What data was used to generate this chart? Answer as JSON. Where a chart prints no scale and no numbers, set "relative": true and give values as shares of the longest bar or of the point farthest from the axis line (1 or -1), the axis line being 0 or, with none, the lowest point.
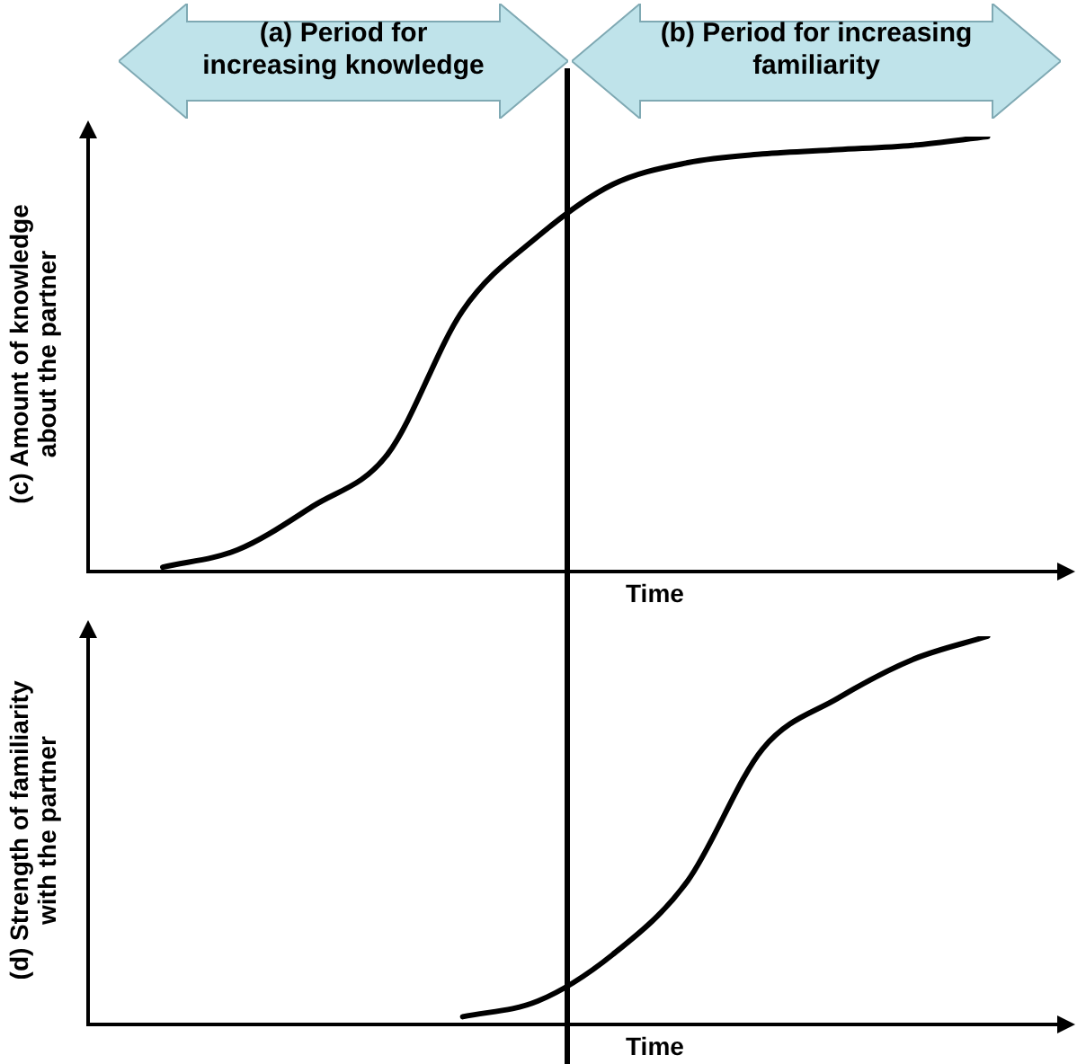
{
  "chart_data": [
    {
      "type": "line",
      "relative": true,
      "ylabel": "(c) Amount of knowledge about the partner",
      "xlabel": "Time",
      "annotations": [
        "(a) Period for increasing knowledge",
        "(b) Period for increasing familiarity"
      ],
      "categories": [
        null,
        null,
        null,
        null,
        null,
        null,
        null,
        null,
        null,
        null,
        null,
        null,
        null,
        null
      ],
      "series": [
        {
          "color": "#000000",
          "values": [
            null,
            0.01,
            0.05,
            0.15,
            0.27,
            0.6,
            0.77,
            0.89,
            0.94,
            0.96,
            0.97,
            0.98,
            1,
            null
          ]
        }
      ],
      "grid": false,
      "legend": false,
      "tick_labels": false,
      "marker": "none",
      "line_style": "solid"
    },
    {
      "type": "line",
      "relative": true,
      "ylabel": "(d) Strength of familiarity with the partner",
      "xlabel": "Time",
      "categories": [
        null,
        null,
        null,
        null,
        null,
        null,
        null,
        null,
        null,
        null,
        null,
        null,
        null,
        null
      ],
      "series": [
        {
          "color": "#000000",
          "values": [
            null,
            null,
            null,
            null,
            null,
            0.02,
            0.06,
            0.18,
            0.37,
            0.71,
            0.84,
            0.94,
            1,
            null
          ]
        }
      ],
      "grid": false,
      "legend": false,
      "tick_labels": false,
      "marker": "none",
      "line_style": "solid"
    }
  ]
}
